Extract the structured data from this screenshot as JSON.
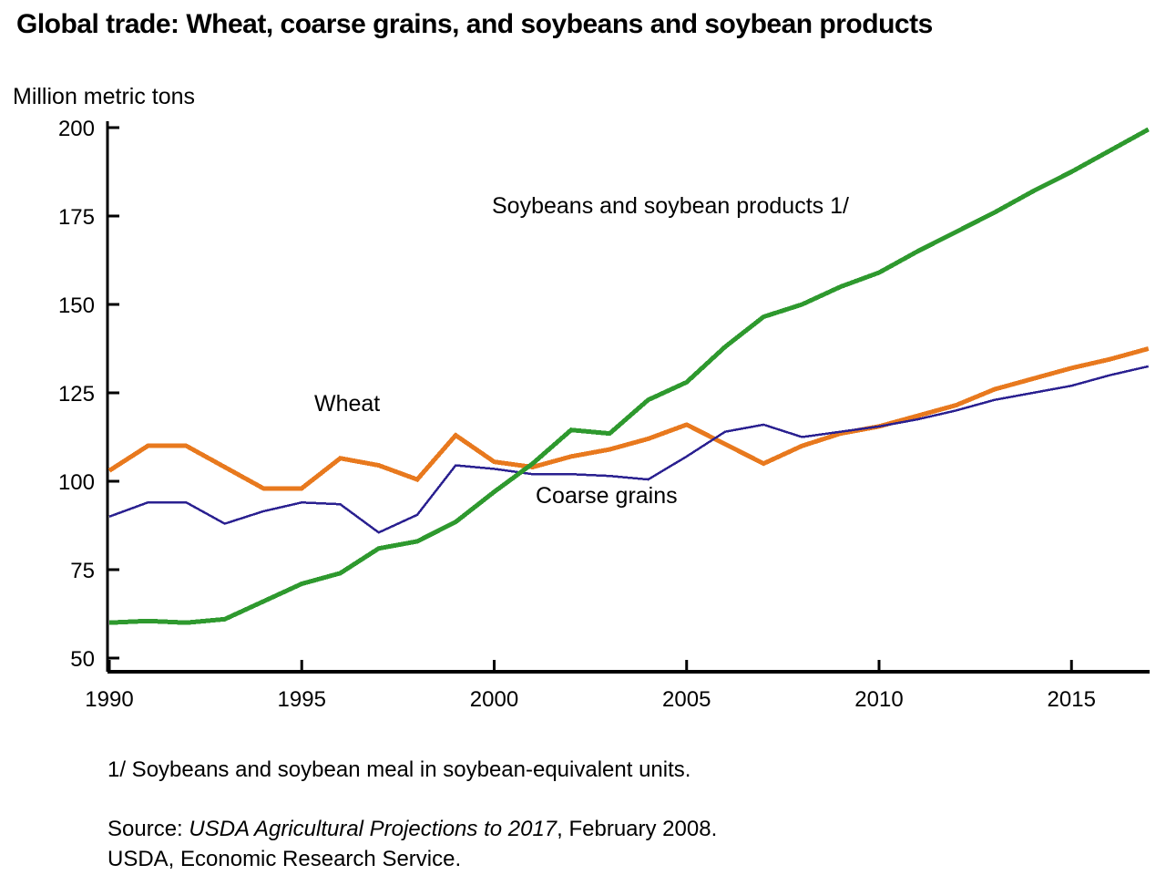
{
  "title": "Global trade: Wheat, coarse grains, and soybeans and soybean products",
  "unit_label": "Million metric tons",
  "annotations": {
    "soybeans": "Soybeans and soybean products 1/",
    "wheat": "Wheat",
    "coarse_grains": "Coarse grains"
  },
  "footnote": "1/ Soybeans and soybean meal in soybean-equivalent units.",
  "source": {
    "prefix": "Source: ",
    "italic": "USDA Agricultural Projections to 2017",
    "suffix": ", February 2008."
  },
  "source_line2": "USDA, Economic Research Service.",
  "colors": {
    "wheat": "#E8791E",
    "coarse_grains": "#2A2090",
    "soybeans": "#2E992E",
    "axis": "#000000"
  },
  "chart_data": {
    "type": "line",
    "title": "Global trade: Wheat, coarse grains, and soybeans and soybean products",
    "xlabel": "",
    "ylabel": "Million metric tons",
    "ylim": [
      50,
      200
    ],
    "y_ticks": [
      50,
      75,
      100,
      125,
      150,
      175,
      200
    ],
    "x_ticks": [
      1990,
      1995,
      2000,
      2005,
      2010,
      2015
    ],
    "grid": false,
    "legend_position": "inline-annotations",
    "x": [
      1990,
      1991,
      1992,
      1993,
      1994,
      1995,
      1996,
      1997,
      1998,
      1999,
      2000,
      2001,
      2002,
      2003,
      2004,
      2005,
      2006,
      2007,
      2008,
      2009,
      2010,
      2011,
      2012,
      2013,
      2014,
      2015,
      2016,
      2017
    ],
    "series": [
      {
        "name": "Wheat",
        "color": "#E8791E",
        "stroke_width": 5,
        "values": [
          103,
          110,
          110,
          104,
          98,
          98,
          106.5,
          104.5,
          100.5,
          113,
          105.5,
          104,
          107,
          109,
          112,
          116,
          110.5,
          105,
          110,
          113.5,
          115.5,
          118.5,
          121.5,
          126,
          129,
          132,
          134.5,
          137.5
        ]
      },
      {
        "name": "Coarse grains",
        "color": "#2A2090",
        "stroke_width": 2.5,
        "values": [
          90,
          94,
          94,
          88,
          91.5,
          94,
          93.5,
          85.5,
          90.5,
          104.5,
          103.5,
          102,
          102,
          101.5,
          100.5,
          107,
          114,
          116,
          112.5,
          114,
          115.5,
          117.5,
          120,
          123,
          125,
          127,
          130,
          132.5
        ]
      },
      {
        "name": "Soybeans and soybean products 1/",
        "color": "#2E992E",
        "stroke_width": 5,
        "values": [
          60,
          60.5,
          60,
          61,
          66,
          71,
          74,
          81,
          83,
          88.5,
          97,
          105,
          114.5,
          113.5,
          123,
          128,
          138,
          146.5,
          150,
          155,
          159,
          165,
          170.5,
          176,
          182,
          187.5,
          193.5,
          199.5
        ]
      }
    ]
  }
}
